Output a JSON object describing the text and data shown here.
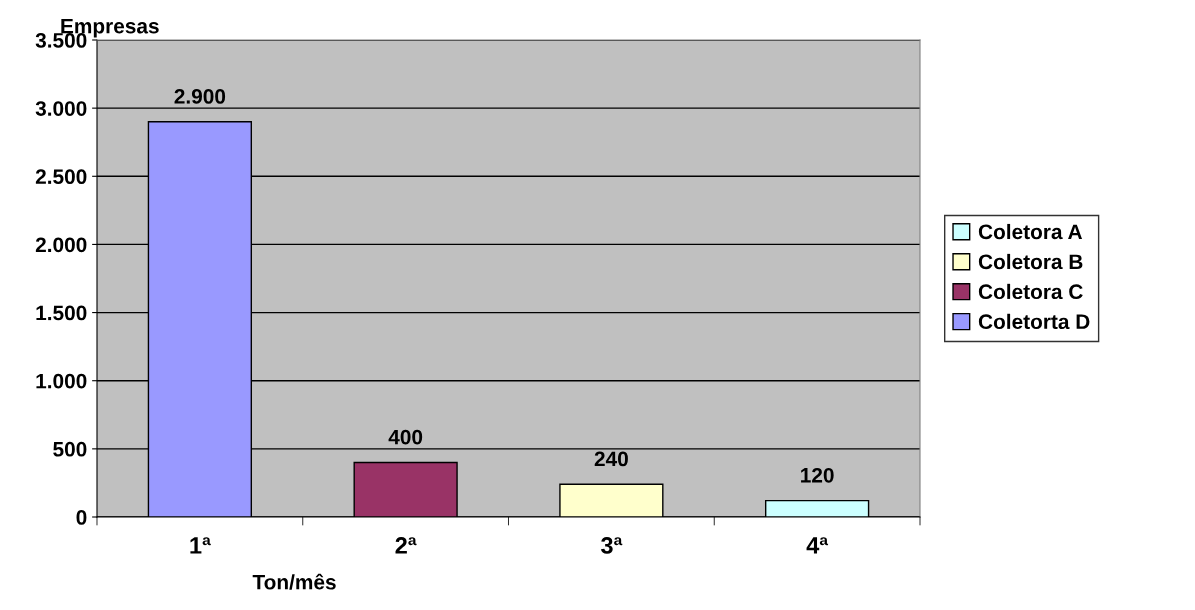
{
  "chart_data": {
    "type": "bar",
    "ylabel": "Empresas",
    "xlabel": "Ton/mês",
    "categories": [
      "1ª",
      "2ª",
      "3ª",
      "4ª"
    ],
    "series": [
      {
        "name": "Coletora A",
        "color": "#ccffff",
        "values": [
          null,
          null,
          null,
          120
        ]
      },
      {
        "name": "Coletora B",
        "color": "#ffffcc",
        "values": [
          null,
          null,
          240,
          null
        ]
      },
      {
        "name": "Coletora C",
        "color": "#993366",
        "values": [
          null,
          400,
          null,
          null
        ]
      },
      {
        "name": "Coletorta D",
        "color": "#9999ff",
        "values": [
          2900,
          null,
          null,
          null
        ]
      }
    ],
    "value_labels": [
      "2.900",
      "400",
      "240",
      "120"
    ],
    "ylim": [
      0,
      3500
    ],
    "yticks": [
      {
        "value": 0,
        "label": "0"
      },
      {
        "value": 500,
        "label": "500"
      },
      {
        "value": 1000,
        "label": "1.000"
      },
      {
        "value": 1500,
        "label": "1.500"
      },
      {
        "value": 2000,
        "label": "2.000"
      },
      {
        "value": 2500,
        "label": "2.500"
      },
      {
        "value": 3000,
        "label": "3.000"
      },
      {
        "value": 3500,
        "label": "3.500"
      }
    ],
    "grid": "y",
    "legend": "right"
  }
}
